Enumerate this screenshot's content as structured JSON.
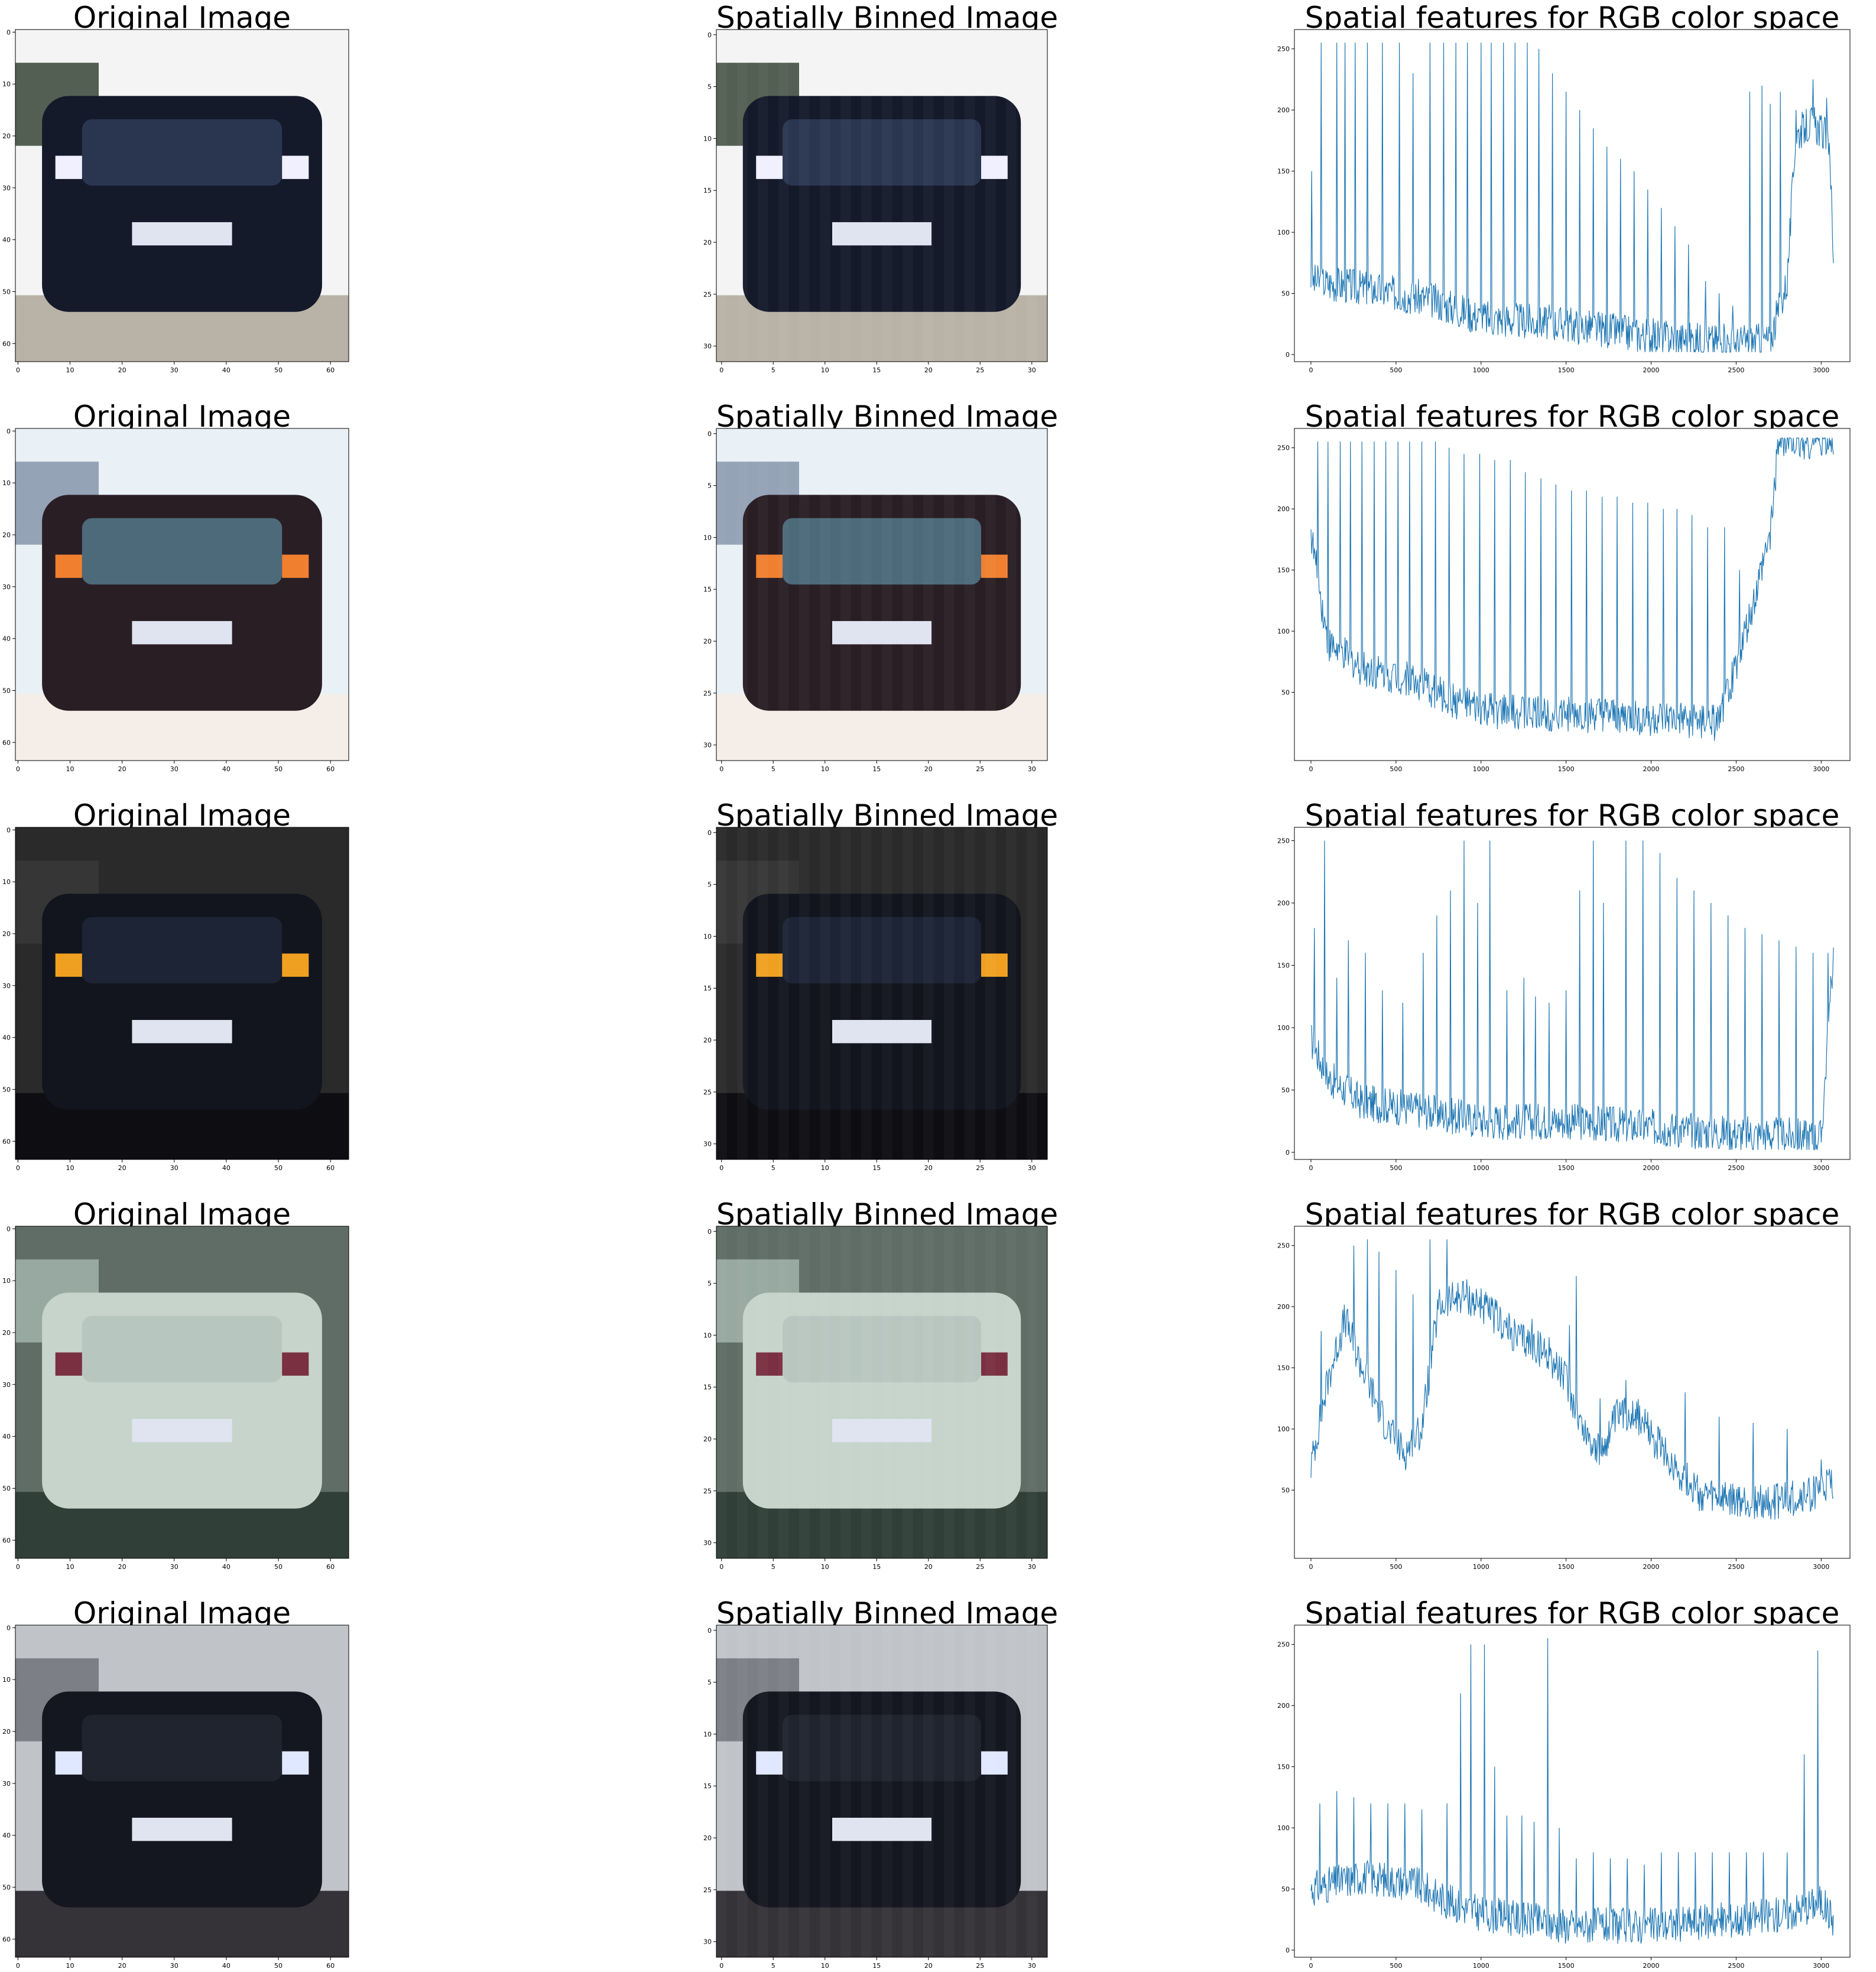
{
  "figure": {
    "titles": {
      "original": "Original Image",
      "binned": "Spatially Binned Image",
      "features": "Spatial features for RGB color space"
    },
    "colors": {
      "line": "#1f77b4",
      "sky": "#f4f6f8",
      "white": "#ffffff"
    }
  },
  "chart_data": [
    {
      "type": "line",
      "row": 1,
      "title": "Spatial features for RGB color space",
      "xlabel": "",
      "ylabel": "",
      "xlim": [
        0,
        3072
      ],
      "ylim": [
        0,
        260
      ],
      "xticks": [
        0,
        500,
        1000,
        1500,
        2000,
        2500,
        3000
      ],
      "yticks": [
        0,
        50,
        100,
        150,
        200,
        250
      ],
      "baseline": [
        [
          0,
          60
        ],
        [
          300,
          55
        ],
        [
          700,
          45
        ],
        [
          1000,
          30
        ],
        [
          1500,
          25
        ],
        [
          2000,
          15
        ],
        [
          2500,
          10
        ],
        [
          2700,
          12
        ],
        [
          2800,
          60
        ],
        [
          2850,
          180
        ],
        [
          2950,
          190
        ],
        [
          3050,
          175
        ],
        [
          3072,
          70
        ]
      ],
      "spikes": [
        [
          5,
          150
        ],
        [
          60,
          255
        ],
        [
          150,
          255
        ],
        [
          200,
          255
        ],
        [
          260,
          255
        ],
        [
          330,
          255
        ],
        [
          420,
          255
        ],
        [
          520,
          255
        ],
        [
          600,
          230
        ],
        [
          700,
          255
        ],
        [
          780,
          255
        ],
        [
          850,
          255
        ],
        [
          920,
          255
        ],
        [
          1000,
          255
        ],
        [
          1060,
          255
        ],
        [
          1130,
          255
        ],
        [
          1200,
          255
        ],
        [
          1270,
          255
        ],
        [
          1340,
          250
        ],
        [
          1420,
          230
        ],
        [
          1500,
          215
        ],
        [
          1580,
          200
        ],
        [
          1660,
          185
        ],
        [
          1740,
          170
        ],
        [
          1820,
          160
        ],
        [
          1900,
          150
        ],
        [
          1980,
          135
        ],
        [
          2060,
          120
        ],
        [
          2140,
          105
        ],
        [
          2220,
          90
        ],
        [
          2320,
          60
        ],
        [
          2400,
          50
        ],
        [
          2480,
          40
        ],
        [
          2580,
          215
        ],
        [
          2650,
          220
        ],
        [
          2700,
          205
        ],
        [
          2760,
          215
        ],
        [
          2850,
          200
        ],
        [
          2950,
          225
        ],
        [
          3030,
          210
        ]
      ]
    },
    {
      "type": "line",
      "row": 2,
      "title": "Spatial features for RGB color space",
      "xlabel": "",
      "ylabel": "",
      "xlim": [
        0,
        3072
      ],
      "ylim": [
        0,
        260
      ],
      "xticks": [
        0,
        500,
        1000,
        1500,
        2000,
        2500,
        3000
      ],
      "yticks": [
        50,
        100,
        150,
        200,
        250
      ],
      "baseline": [
        [
          0,
          180
        ],
        [
          100,
          90
        ],
        [
          300,
          70
        ],
        [
          600,
          60
        ],
        [
          800,
          45
        ],
        [
          1000,
          35
        ],
        [
          1500,
          32
        ],
        [
          2000,
          28
        ],
        [
          2400,
          25
        ],
        [
          2600,
          120
        ],
        [
          2700,
          180
        ],
        [
          2750,
          255
        ],
        [
          3072,
          255
        ]
      ],
      "spikes": [
        [
          40,
          255
        ],
        [
          100,
          255
        ],
        [
          170,
          255
        ],
        [
          230,
          255
        ],
        [
          300,
          255
        ],
        [
          370,
          255
        ],
        [
          440,
          255
        ],
        [
          510,
          255
        ],
        [
          580,
          255
        ],
        [
          650,
          255
        ],
        [
          730,
          255
        ],
        [
          810,
          250
        ],
        [
          900,
          245
        ],
        [
          990,
          245
        ],
        [
          1080,
          240
        ],
        [
          1170,
          240
        ],
        [
          1260,
          230
        ],
        [
          1350,
          225
        ],
        [
          1440,
          220
        ],
        [
          1530,
          215
        ],
        [
          1620,
          215
        ],
        [
          1710,
          210
        ],
        [
          1800,
          210
        ],
        [
          1890,
          205
        ],
        [
          1980,
          205
        ],
        [
          2070,
          200
        ],
        [
          2150,
          200
        ],
        [
          2240,
          195
        ],
        [
          2330,
          185
        ],
        [
          2430,
          185
        ],
        [
          2520,
          150
        ]
      ]
    },
    {
      "type": "line",
      "row": 3,
      "title": "Spatial features for RGB color space",
      "xlabel": "",
      "ylabel": "",
      "xlim": [
        0,
        3072
      ],
      "ylim": [
        0,
        255
      ],
      "xticks": [
        0,
        500,
        1000,
        1500,
        2000,
        2500,
        3000
      ],
      "yticks": [
        0,
        50,
        100,
        150,
        200,
        250
      ],
      "baseline": [
        [
          0,
          90
        ],
        [
          100,
          60
        ],
        [
          300,
          40
        ],
        [
          600,
          35
        ],
        [
          1000,
          25
        ],
        [
          1500,
          25
        ],
        [
          2000,
          20
        ],
        [
          2500,
          15
        ],
        [
          3000,
          12
        ],
        [
          3072,
          160
        ]
      ],
      "spikes": [
        [
          20,
          180
        ],
        [
          80,
          250
        ],
        [
          150,
          140
        ],
        [
          220,
          170
        ],
        [
          320,
          160
        ],
        [
          420,
          130
        ],
        [
          540,
          120
        ],
        [
          660,
          160
        ],
        [
          740,
          190
        ],
        [
          820,
          210
        ],
        [
          900,
          250
        ],
        [
          980,
          200
        ],
        [
          1050,
          250
        ],
        [
          1150,
          130
        ],
        [
          1250,
          140
        ],
        [
          1320,
          125
        ],
        [
          1400,
          120
        ],
        [
          1500,
          130
        ],
        [
          1580,
          210
        ],
        [
          1660,
          250
        ],
        [
          1720,
          200
        ],
        [
          1850,
          250
        ],
        [
          1950,
          250
        ],
        [
          2050,
          240
        ],
        [
          2150,
          220
        ],
        [
          2250,
          210
        ],
        [
          2350,
          200
        ],
        [
          2450,
          190
        ],
        [
          2550,
          180
        ],
        [
          2650,
          175
        ],
        [
          2750,
          170
        ],
        [
          2850,
          165
        ],
        [
          2950,
          160
        ],
        [
          3040,
          160
        ]
      ]
    },
    {
      "type": "line",
      "row": 4,
      "title": "Spatial features for RGB color space",
      "xlabel": "",
      "ylabel": "",
      "xlim": [
        0,
        3072
      ],
      "ylim": [
        0,
        260
      ],
      "xticks": [
        0,
        500,
        1000,
        1500,
        2000,
        2500,
        3000
      ],
      "yticks": [
        50,
        100,
        150,
        200,
        250
      ],
      "baseline": [
        [
          0,
          70
        ],
        [
          100,
          140
        ],
        [
          200,
          190
        ],
        [
          300,
          150
        ],
        [
          450,
          100
        ],
        [
          550,
          80
        ],
        [
          650,
          100
        ],
        [
          750,
          200
        ],
        [
          900,
          210
        ],
        [
          1000,
          200
        ],
        [
          1100,
          190
        ],
        [
          1200,
          175
        ],
        [
          1300,
          170
        ],
        [
          1400,
          160
        ],
        [
          1500,
          140
        ],
        [
          1600,
          100
        ],
        [
          1700,
          80
        ],
        [
          1800,
          110
        ],
        [
          1900,
          115
        ],
        [
          2000,
          95
        ],
        [
          2100,
          75
        ],
        [
          2200,
          60
        ],
        [
          2300,
          45
        ],
        [
          2500,
          40
        ],
        [
          2700,
          40
        ],
        [
          2900,
          45
        ],
        [
          3072,
          55
        ]
      ],
      "spikes": [
        [
          60,
          180
        ],
        [
          250,
          250
        ],
        [
          330,
          255
        ],
        [
          400,
          245
        ],
        [
          500,
          230
        ],
        [
          600,
          210
        ],
        [
          700,
          255
        ],
        [
          800,
          255
        ],
        [
          1000,
          215
        ],
        [
          1200,
          185
        ],
        [
          1300,
          190
        ],
        [
          1400,
          175
        ],
        [
          1520,
          185
        ],
        [
          1560,
          225
        ],
        [
          1700,
          125
        ],
        [
          1850,
          140
        ],
        [
          1950,
          105
        ],
        [
          2050,
          100
        ],
        [
          2200,
          130
        ],
        [
          2400,
          110
        ],
        [
          2600,
          105
        ],
        [
          2800,
          100
        ],
        [
          3000,
          75
        ]
      ]
    },
    {
      "type": "line",
      "row": 5,
      "title": "Spatial features for RGB color space",
      "xlabel": "",
      "ylabel": "",
      "xlim": [
        0,
        3072
      ],
      "ylim": [
        0,
        260
      ],
      "xticks": [
        0,
        500,
        1000,
        1500,
        2000,
        2500,
        3000
      ],
      "yticks": [
        0,
        50,
        100,
        150,
        200,
        250
      ],
      "baseline": [
        [
          0,
          50
        ],
        [
          300,
          60
        ],
        [
          600,
          55
        ],
        [
          800,
          40
        ],
        [
          1000,
          30
        ],
        [
          1500,
          20
        ],
        [
          2000,
          20
        ],
        [
          2500,
          25
        ],
        [
          2800,
          30
        ],
        [
          3000,
          40
        ],
        [
          3072,
          25
        ]
      ],
      "spikes": [
        [
          50,
          120
        ],
        [
          150,
          130
        ],
        [
          250,
          125
        ],
        [
          350,
          120
        ],
        [
          450,
          120
        ],
        [
          550,
          120
        ],
        [
          650,
          115
        ],
        [
          800,
          120
        ],
        [
          880,
          210
        ],
        [
          940,
          250
        ],
        [
          1020,
          250
        ],
        [
          1080,
          150
        ],
        [
          1150,
          110
        ],
        [
          1240,
          110
        ],
        [
          1310,
          105
        ],
        [
          1390,
          255
        ],
        [
          1460,
          100
        ],
        [
          1560,
          75
        ],
        [
          1660,
          80
        ],
        [
          1760,
          75
        ],
        [
          1860,
          75
        ],
        [
          1960,
          70
        ],
        [
          2060,
          80
        ],
        [
          2160,
          80
        ],
        [
          2260,
          80
        ],
        [
          2360,
          80
        ],
        [
          2460,
          80
        ],
        [
          2560,
          80
        ],
        [
          2660,
          80
        ],
        [
          2800,
          80
        ],
        [
          2900,
          160
        ],
        [
          2980,
          245
        ]
      ]
    }
  ],
  "images": [
    {
      "row": 1,
      "original": {
        "xticks": [
          0,
          10,
          20,
          30,
          40,
          50,
          60
        ],
        "yticks": [
          0,
          10,
          20,
          30,
          40,
          50,
          60
        ]
      },
      "binned": {
        "xticks": [
          0,
          5,
          10,
          15,
          20,
          25,
          30
        ],
        "yticks": [
          0,
          5,
          10,
          15,
          20,
          25,
          30
        ]
      }
    },
    {
      "row": 2,
      "original": {
        "xticks": [
          0,
          10,
          20,
          30,
          40,
          50,
          60
        ],
        "yticks": [
          0,
          10,
          20,
          30,
          40,
          50,
          60
        ]
      },
      "binned": {
        "xticks": [
          0,
          5,
          10,
          15,
          20,
          25,
          30
        ],
        "yticks": [
          0,
          5,
          10,
          15,
          20,
          25,
          30
        ]
      }
    },
    {
      "row": 3,
      "original": {
        "xticks": [
          0,
          10,
          20,
          30,
          40,
          50,
          60
        ],
        "yticks": [
          0,
          10,
          20,
          30,
          40,
          50,
          60
        ]
      },
      "binned": {
        "xticks": [
          0,
          5,
          10,
          15,
          20,
          25,
          30
        ],
        "yticks": [
          0,
          5,
          10,
          15,
          20,
          25,
          30
        ]
      }
    },
    {
      "row": 4,
      "original": {
        "xticks": [
          0,
          10,
          20,
          30,
          40,
          50,
          60
        ],
        "yticks": [
          0,
          10,
          20,
          30,
          40,
          50,
          60
        ]
      },
      "binned": {
        "xticks": [
          0,
          5,
          10,
          15,
          20,
          25,
          30
        ],
        "yticks": [
          0,
          5,
          10,
          15,
          20,
          25,
          30
        ]
      }
    },
    {
      "row": 5,
      "original": {
        "xticks": [
          0,
          10,
          20,
          30,
          40,
          50,
          60
        ],
        "yticks": [
          0,
          10,
          20,
          30,
          40,
          50,
          60
        ]
      },
      "binned": {
        "xticks": [
          0,
          5,
          10,
          15,
          20,
          25,
          30
        ],
        "yticks": [
          0,
          5,
          10,
          15,
          20,
          25,
          30
        ]
      }
    }
  ]
}
